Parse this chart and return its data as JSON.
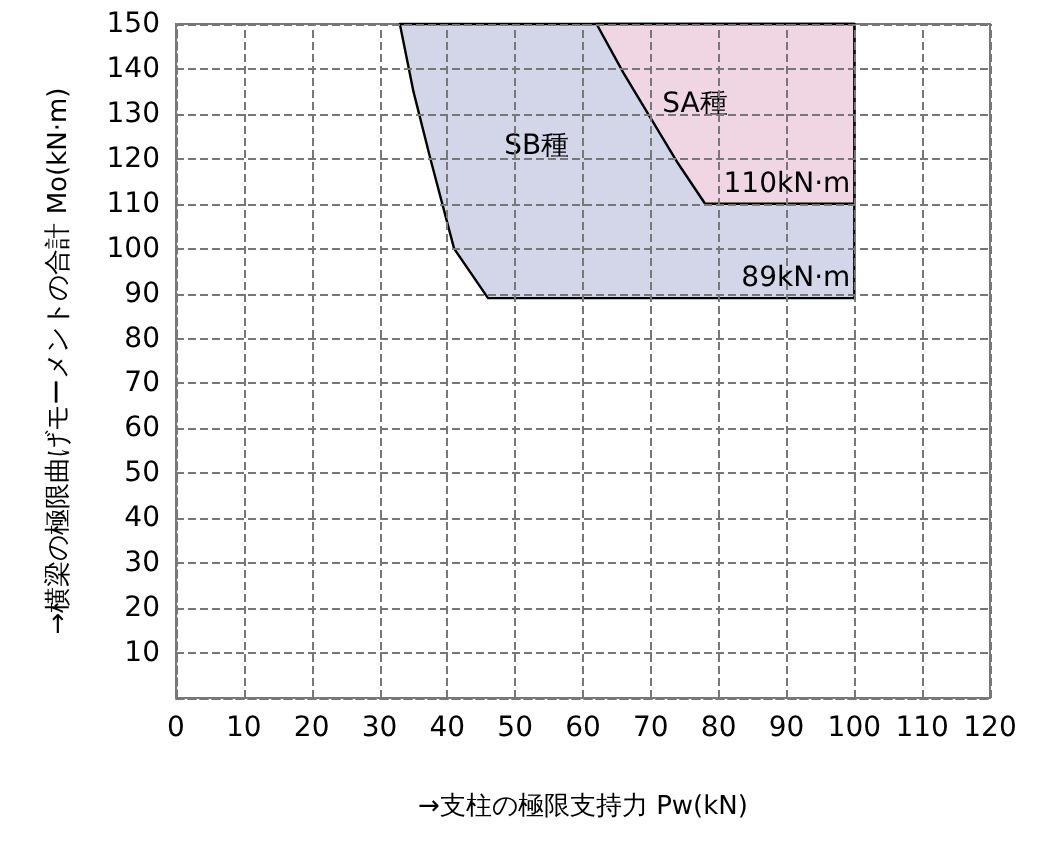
{
  "chart_data": {
    "type": "area",
    "xlabel": "→支柱の極限支持力 Pw(kN)",
    "ylabel": "→横梁の極限曲げモーメントの合計 Mo(kN·m)",
    "xlim": [
      0,
      120
    ],
    "xticks": [
      0,
      10,
      20,
      30,
      40,
      50,
      60,
      70,
      80,
      90,
      100,
      110,
      120
    ],
    "ylim": [
      0,
      150
    ],
    "yticks": [
      {
        "value": 0,
        "label": null
      },
      10,
      20,
      30,
      40,
      50,
      60,
      70,
      80,
      90,
      100,
      110,
      120,
      130,
      140,
      150
    ],
    "grid": true,
    "series": [
      {
        "name": "SB種",
        "color": "#d3d5e8",
        "x": [
          33,
          35,
          37.5,
          41,
          46,
          100,
          100,
          33
        ],
        "values": [
          150,
          135,
          120,
          100,
          89,
          89,
          150,
          150
        ]
      },
      {
        "name": "SA種",
        "color": "#f0d5e2",
        "x": [
          62,
          66,
          70,
          74,
          78,
          100,
          100,
          62
        ],
        "values": [
          150,
          139,
          129,
          119,
          110,
          110,
          150,
          150
        ]
      }
    ],
    "annotations": [
      {
        "text": "110kN·m",
        "x": 100,
        "y": 110
      },
      {
        "text": "89kN·m",
        "x": 100,
        "y": 89
      }
    ]
  }
}
